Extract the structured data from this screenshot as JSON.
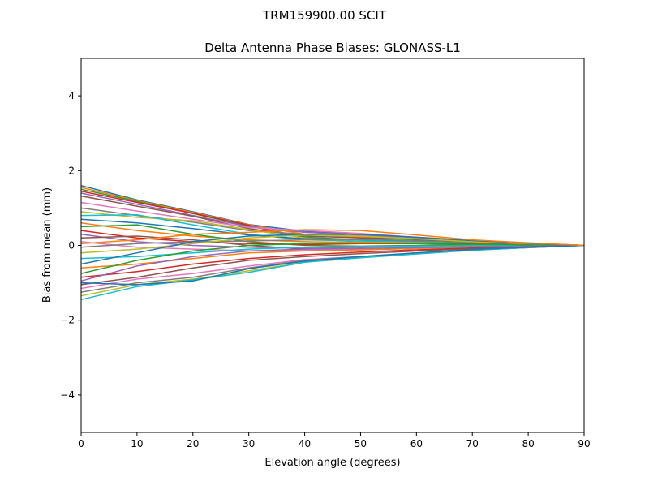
{
  "chart_data": {
    "type": "line",
    "suptitle": "TRM159900.00    SCIT",
    "title": "Delta Antenna Phase Biases: GLONASS-L1",
    "xlabel": "Elevation angle (degrees)",
    "ylabel": "Bias from mean (mm)",
    "xlim": [
      0,
      90
    ],
    "ylim": [
      -5,
      5
    ],
    "xticks": [
      0,
      10,
      20,
      30,
      40,
      50,
      60,
      70,
      80,
      90
    ],
    "yticks": [
      -4,
      -2,
      0,
      2,
      4
    ],
    "ytick_labels": [
      "−4",
      "−2",
      "0",
      "2",
      "4"
    ],
    "grid": false,
    "colors": [
      "#1f77b4",
      "#ff7f0e",
      "#2ca02c",
      "#d62728",
      "#9467bd",
      "#8c564b",
      "#e377c2",
      "#7f7f7f",
      "#bcbd22",
      "#17becf"
    ],
    "x": [
      0,
      10,
      20,
      30,
      40,
      50,
      60,
      70,
      80,
      90
    ],
    "series": [
      {
        "values": [
          1.6,
          1.22,
          0.9,
          0.56,
          0.38,
          0.3,
          0.2,
          0.12,
          0.06,
          0
        ]
      },
      {
        "values": [
          1.55,
          1.2,
          0.88,
          0.55,
          0.3,
          0.22,
          0.18,
          0.11,
          0.05,
          0
        ]
      },
      {
        "values": [
          1.5,
          1.18,
          0.85,
          0.52,
          0.22,
          0.15,
          0.14,
          0.1,
          0.05,
          0
        ]
      },
      {
        "values": [
          1.45,
          1.15,
          0.86,
          0.54,
          0.18,
          0.1,
          0.12,
          0.09,
          0.05,
          0
        ]
      },
      {
        "values": [
          1.4,
          1.1,
          0.8,
          0.5,
          0.35,
          0.28,
          0.2,
          0.12,
          0.06,
          0
        ]
      },
      {
        "values": [
          1.32,
          1.05,
          0.78,
          0.45,
          0.25,
          0.2,
          0.17,
          0.11,
          0.05,
          0
        ]
      },
      {
        "values": [
          1.15,
          0.92,
          0.7,
          0.48,
          0.4,
          0.32,
          0.22,
          0.13,
          0.06,
          0
        ]
      },
      {
        "values": [
          1.0,
          0.8,
          0.62,
          0.4,
          0.3,
          0.25,
          0.18,
          0.11,
          0.05,
          0
        ]
      },
      {
        "values": [
          0.9,
          0.75,
          0.66,
          0.42,
          0.2,
          0.1,
          0.08,
          0.06,
          0.03,
          0
        ]
      },
      {
        "values": [
          0.8,
          0.82,
          0.55,
          0.3,
          0.15,
          0.12,
          0.1,
          0.07,
          0.04,
          0
        ]
      },
      {
        "values": [
          0.7,
          0.6,
          0.45,
          0.28,
          0.18,
          0.16,
          0.12,
          0.08,
          0.04,
          0
        ]
      },
      {
        "values": [
          0.6,
          0.4,
          0.25,
          0.15,
          0.1,
          0.08,
          0.07,
          0.05,
          0.03,
          0
        ]
      },
      {
        "values": [
          0.5,
          0.55,
          0.3,
          0.1,
          0.0,
          -0.02,
          0.0,
          0.02,
          0.01,
          0
        ]
      },
      {
        "values": [
          0.4,
          0.2,
          0.1,
          0.05,
          0.02,
          0.05,
          0.05,
          0.04,
          0.02,
          0
        ]
      },
      {
        "values": [
          0.3,
          0.1,
          0.0,
          -0.05,
          -0.08,
          -0.05,
          -0.03,
          -0.01,
          0.0,
          0
        ]
      },
      {
        "values": [
          0.2,
          0.25,
          0.15,
          0.0,
          -0.1,
          -0.12,
          -0.08,
          -0.04,
          -0.02,
          0
        ]
      },
      {
        "values": [
          0.1,
          -0.05,
          -0.1,
          -0.15,
          -0.12,
          -0.1,
          -0.06,
          -0.03,
          -0.01,
          0
        ]
      },
      {
        "values": [
          -0.05,
          0.05,
          0.1,
          0.12,
          0.15,
          0.16,
          0.12,
          0.08,
          0.04,
          0
        ]
      },
      {
        "values": [
          -0.2,
          -0.1,
          0.05,
          0.2,
          0.28,
          0.25,
          0.18,
          0.1,
          0.05,
          0
        ]
      },
      {
        "values": [
          -0.35,
          -0.3,
          -0.2,
          -0.1,
          -0.05,
          -0.03,
          -0.02,
          -0.01,
          0.0,
          0
        ]
      },
      {
        "values": [
          -0.5,
          -0.2,
          0.1,
          0.25,
          0.3,
          0.3,
          0.22,
          0.13,
          0.06,
          0
        ]
      },
      {
        "values": [
          -0.6,
          -0.5,
          -0.35,
          -0.2,
          -0.15,
          -0.12,
          -0.08,
          -0.05,
          -0.02,
          0
        ]
      },
      {
        "values": [
          -0.75,
          -0.4,
          -0.15,
          0.0,
          0.05,
          0.06,
          0.05,
          0.03,
          0.01,
          0
        ]
      },
      {
        "values": [
          -0.85,
          -0.7,
          -0.5,
          -0.35,
          -0.25,
          -0.18,
          -0.12,
          -0.07,
          -0.03,
          0
        ]
      },
      {
        "values": [
          -0.95,
          -0.55,
          -0.3,
          -0.15,
          -0.1,
          -0.08,
          -0.06,
          -0.04,
          -0.02,
          0
        ]
      },
      {
        "values": [
          -1.05,
          -0.85,
          -0.6,
          -0.4,
          -0.3,
          -0.22,
          -0.15,
          -0.09,
          -0.04,
          0
        ]
      },
      {
        "values": [
          -1.15,
          -0.9,
          -0.75,
          -0.55,
          -0.38,
          -0.3,
          -0.2,
          -0.12,
          -0.06,
          0
        ]
      },
      {
        "values": [
          -1.25,
          -1.0,
          -0.85,
          -0.6,
          -0.4,
          -0.3,
          -0.22,
          -0.13,
          -0.06,
          0
        ]
      },
      {
        "values": [
          -1.35,
          -1.05,
          -0.9,
          -0.68,
          -0.45,
          -0.33,
          -0.22,
          -0.12,
          -0.06,
          0
        ]
      },
      {
        "values": [
          -1.45,
          -1.1,
          -0.92,
          -0.72,
          -0.45,
          -0.33,
          -0.23,
          -0.13,
          -0.06,
          0
        ]
      },
      {
        "values": [
          -1.0,
          -1.05,
          -0.95,
          -0.62,
          -0.42,
          -0.3,
          -0.2,
          -0.11,
          -0.05,
          0
        ]
      },
      {
        "values": [
          0.05,
          0.15,
          0.3,
          0.35,
          0.42,
          0.4,
          0.28,
          0.15,
          0.07,
          0
        ]
      }
    ]
  }
}
